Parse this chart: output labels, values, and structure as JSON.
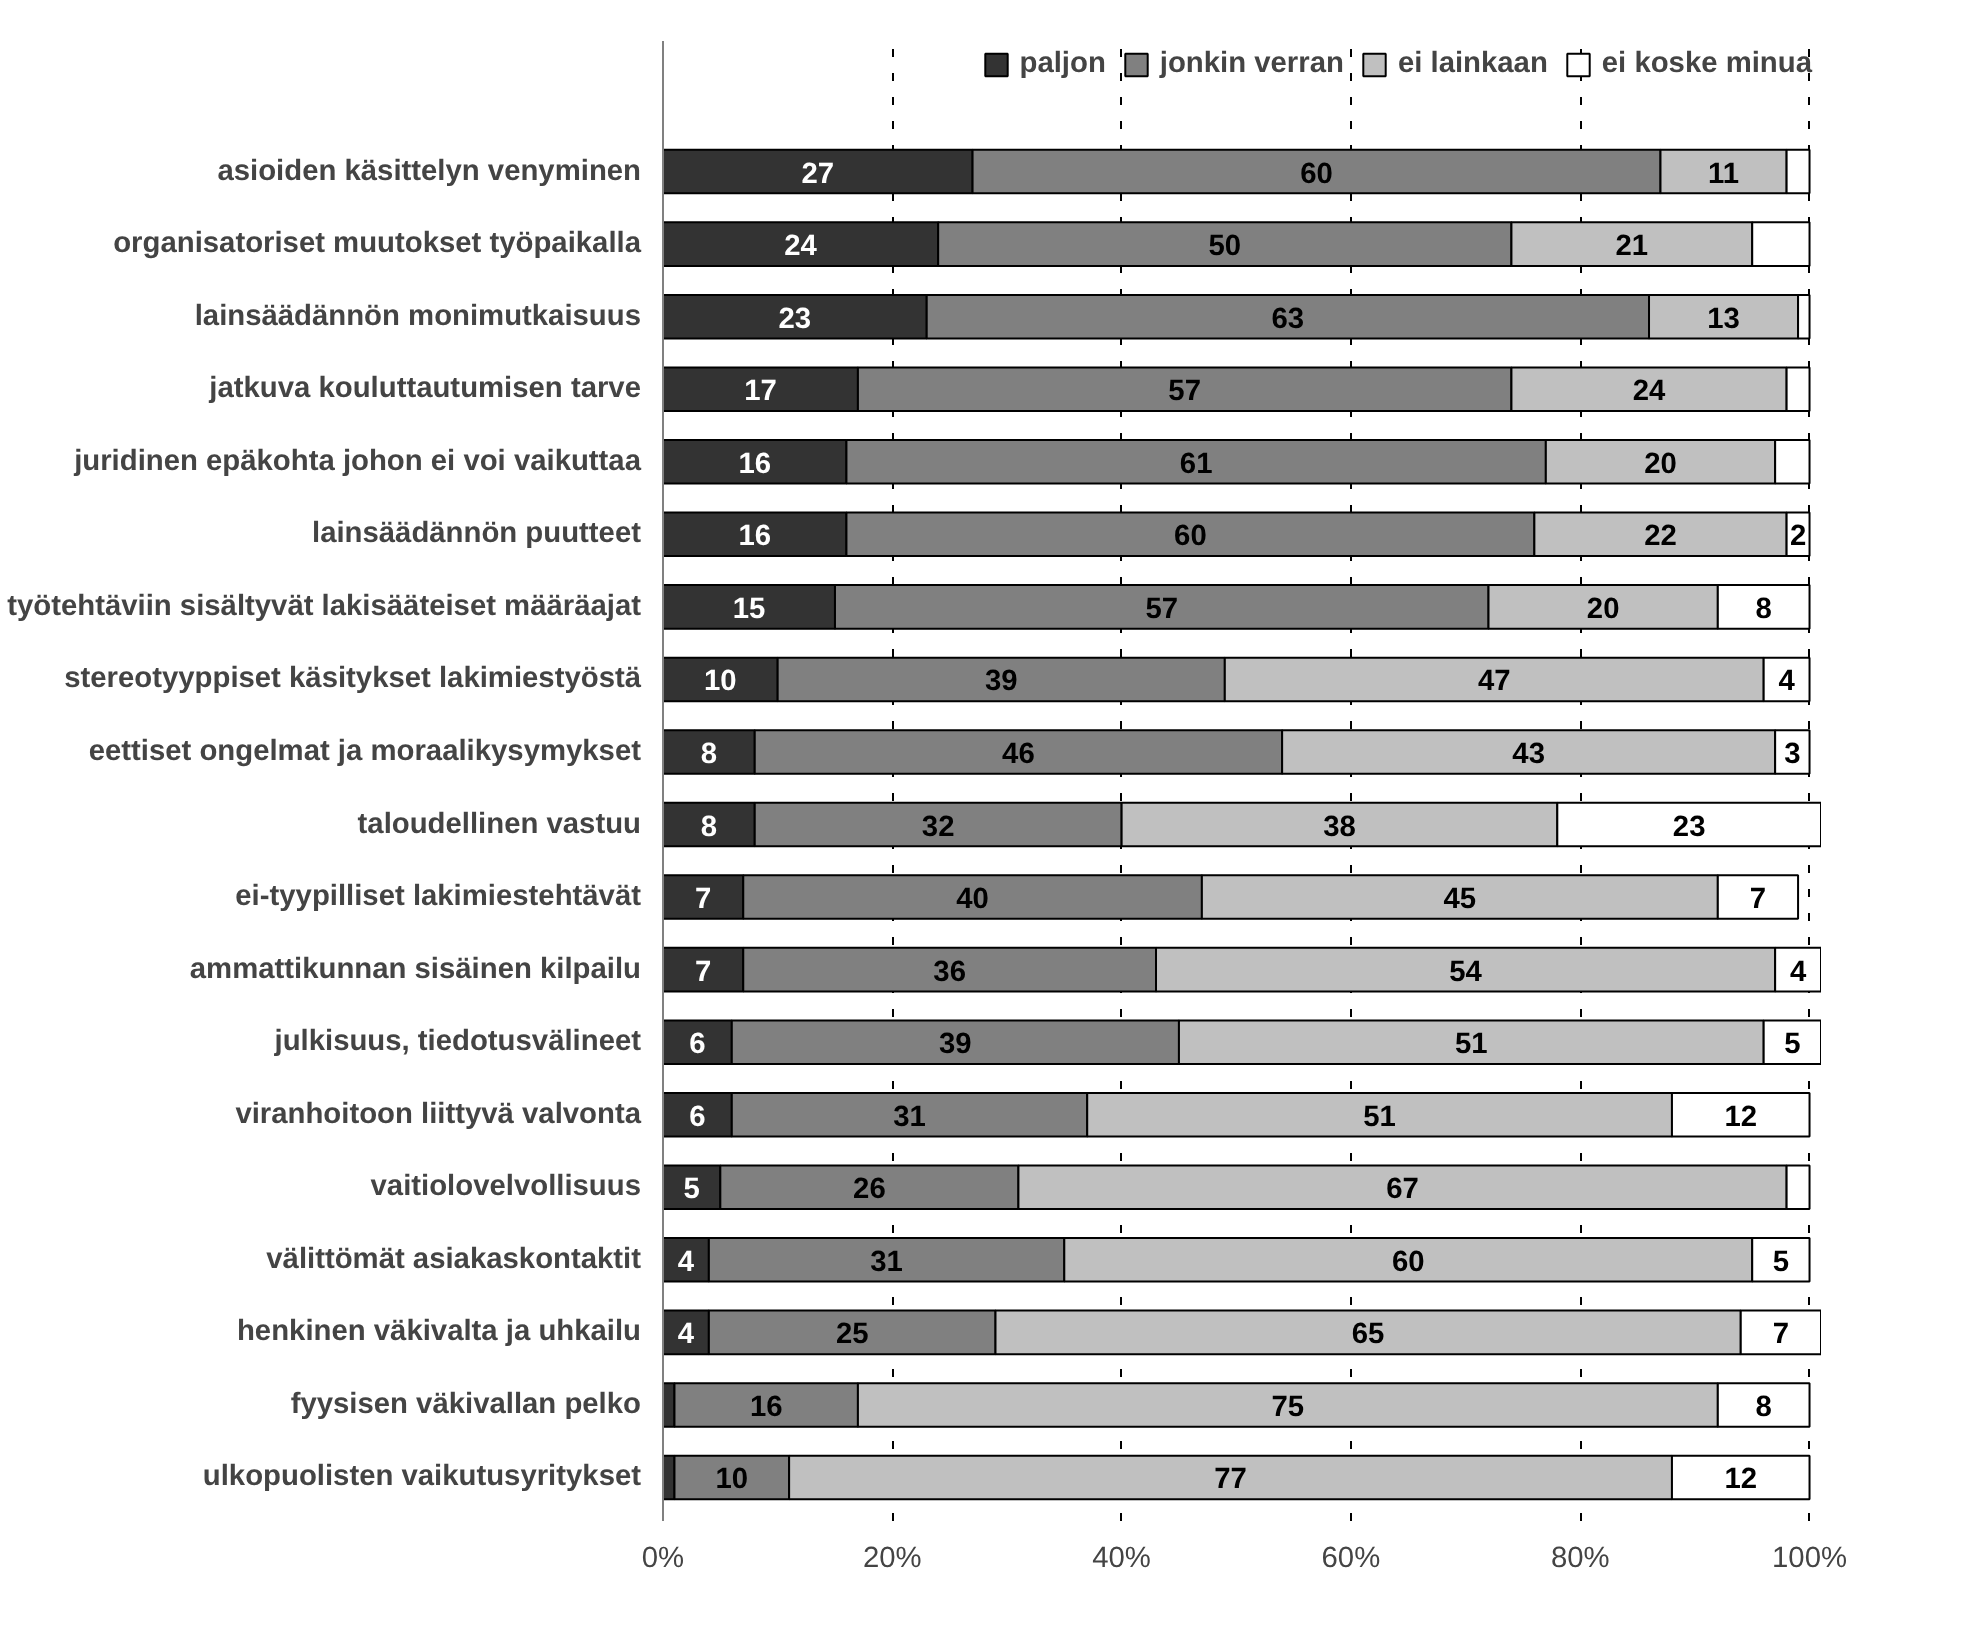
{
  "chart_data": {
    "type": "bar",
    "orientation": "horizontal",
    "stacked": true,
    "categories": [
      "asioiden käsittelyn venyminen",
      "organisatoriset muutokset työpaikalla",
      "lainsäädännön monimutkaisuus",
      "jatkuva kouluttautumisen tarve",
      "juridinen epäkohta johon ei voi vaikuttaa",
      "lainsäädännön puutteet",
      "työtehtäviin sisältyvät lakisääteiset määräajat",
      "stereotyyppiset käsitykset lakimiestyöstä",
      "eettiset ongelmat ja moraalikysymykset",
      "taloudellinen vastuu",
      "ei-tyypilliset lakimiestehtävät",
      "ammattikunnan sisäinen kilpailu",
      "julkisuus, tiedotusvälineet",
      "viranhoitoon liittyvä valvonta",
      "vaitiolovelvollisuus",
      "välittömät asiakaskontaktit",
      "henkinen väkivalta ja uhkailu",
      "fyysisen väkivallan pelko",
      "ulkopuolisten vaikutusyritykset"
    ],
    "series": [
      {
        "name": "paljon",
        "color": "#333333",
        "values": [
          27,
          24,
          23,
          17,
          16,
          16,
          15,
          10,
          8,
          8,
          7,
          7,
          6,
          6,
          5,
          4,
          4,
          1,
          1
        ],
        "value_labels": [
          "27",
          "24",
          "23",
          "17",
          "16",
          "16",
          "15",
          "10",
          "8",
          "8",
          "7",
          "7",
          "6",
          "6",
          "5",
          "4",
          "4",
          null,
          null
        ]
      },
      {
        "name": "jonkin verran",
        "color": "#808080",
        "values": [
          60,
          50,
          63,
          57,
          61,
          60,
          57,
          39,
          46,
          32,
          40,
          36,
          39,
          31,
          26,
          31,
          25,
          16,
          10
        ],
        "value_labels": [
          "60",
          "50",
          "63",
          "57",
          "61",
          "60",
          "57",
          "39",
          "46",
          "32",
          "40",
          "36",
          "39",
          "31",
          "26",
          "31",
          "25",
          "16",
          "10"
        ]
      },
      {
        "name": "ei lainkaan",
        "color": "#c0c0c0",
        "values": [
          11,
          21,
          13,
          24,
          20,
          22,
          20,
          47,
          43,
          38,
          45,
          54,
          51,
          51,
          67,
          60,
          65,
          75,
          77
        ],
        "value_labels": [
          "11",
          "21",
          "13",
          "24",
          "20",
          "22",
          "20",
          "47",
          "43",
          "38",
          "45",
          "54",
          "51",
          "51",
          "67",
          "60",
          "65",
          "75",
          "77"
        ]
      },
      {
        "name": "ei koske minua",
        "color": "#ffffff",
        "values": [
          2,
          5,
          1,
          2,
          3,
          2,
          8,
          4,
          3,
          23,
          7,
          4,
          5,
          12,
          2,
          5,
          7,
          8,
          12
        ],
        "value_labels": [
          null,
          null,
          null,
          null,
          null,
          "2",
          "8",
          "4",
          "3",
          "23",
          "7",
          "4",
          "5",
          "12",
          null,
          "5",
          "7",
          "8",
          "12"
        ]
      }
    ],
    "xlim": [
      0,
      101
    ],
    "xticks": [
      {
        "value": 0,
        "label": "0%"
      },
      {
        "value": 20,
        "label": "20%"
      },
      {
        "value": 40,
        "label": "40%"
      },
      {
        "value": 60,
        "label": "60%"
      },
      {
        "value": 80,
        "label": "80%"
      },
      {
        "value": 100,
        "label": "100%"
      }
    ],
    "grid": "x",
    "legend": "top right"
  }
}
